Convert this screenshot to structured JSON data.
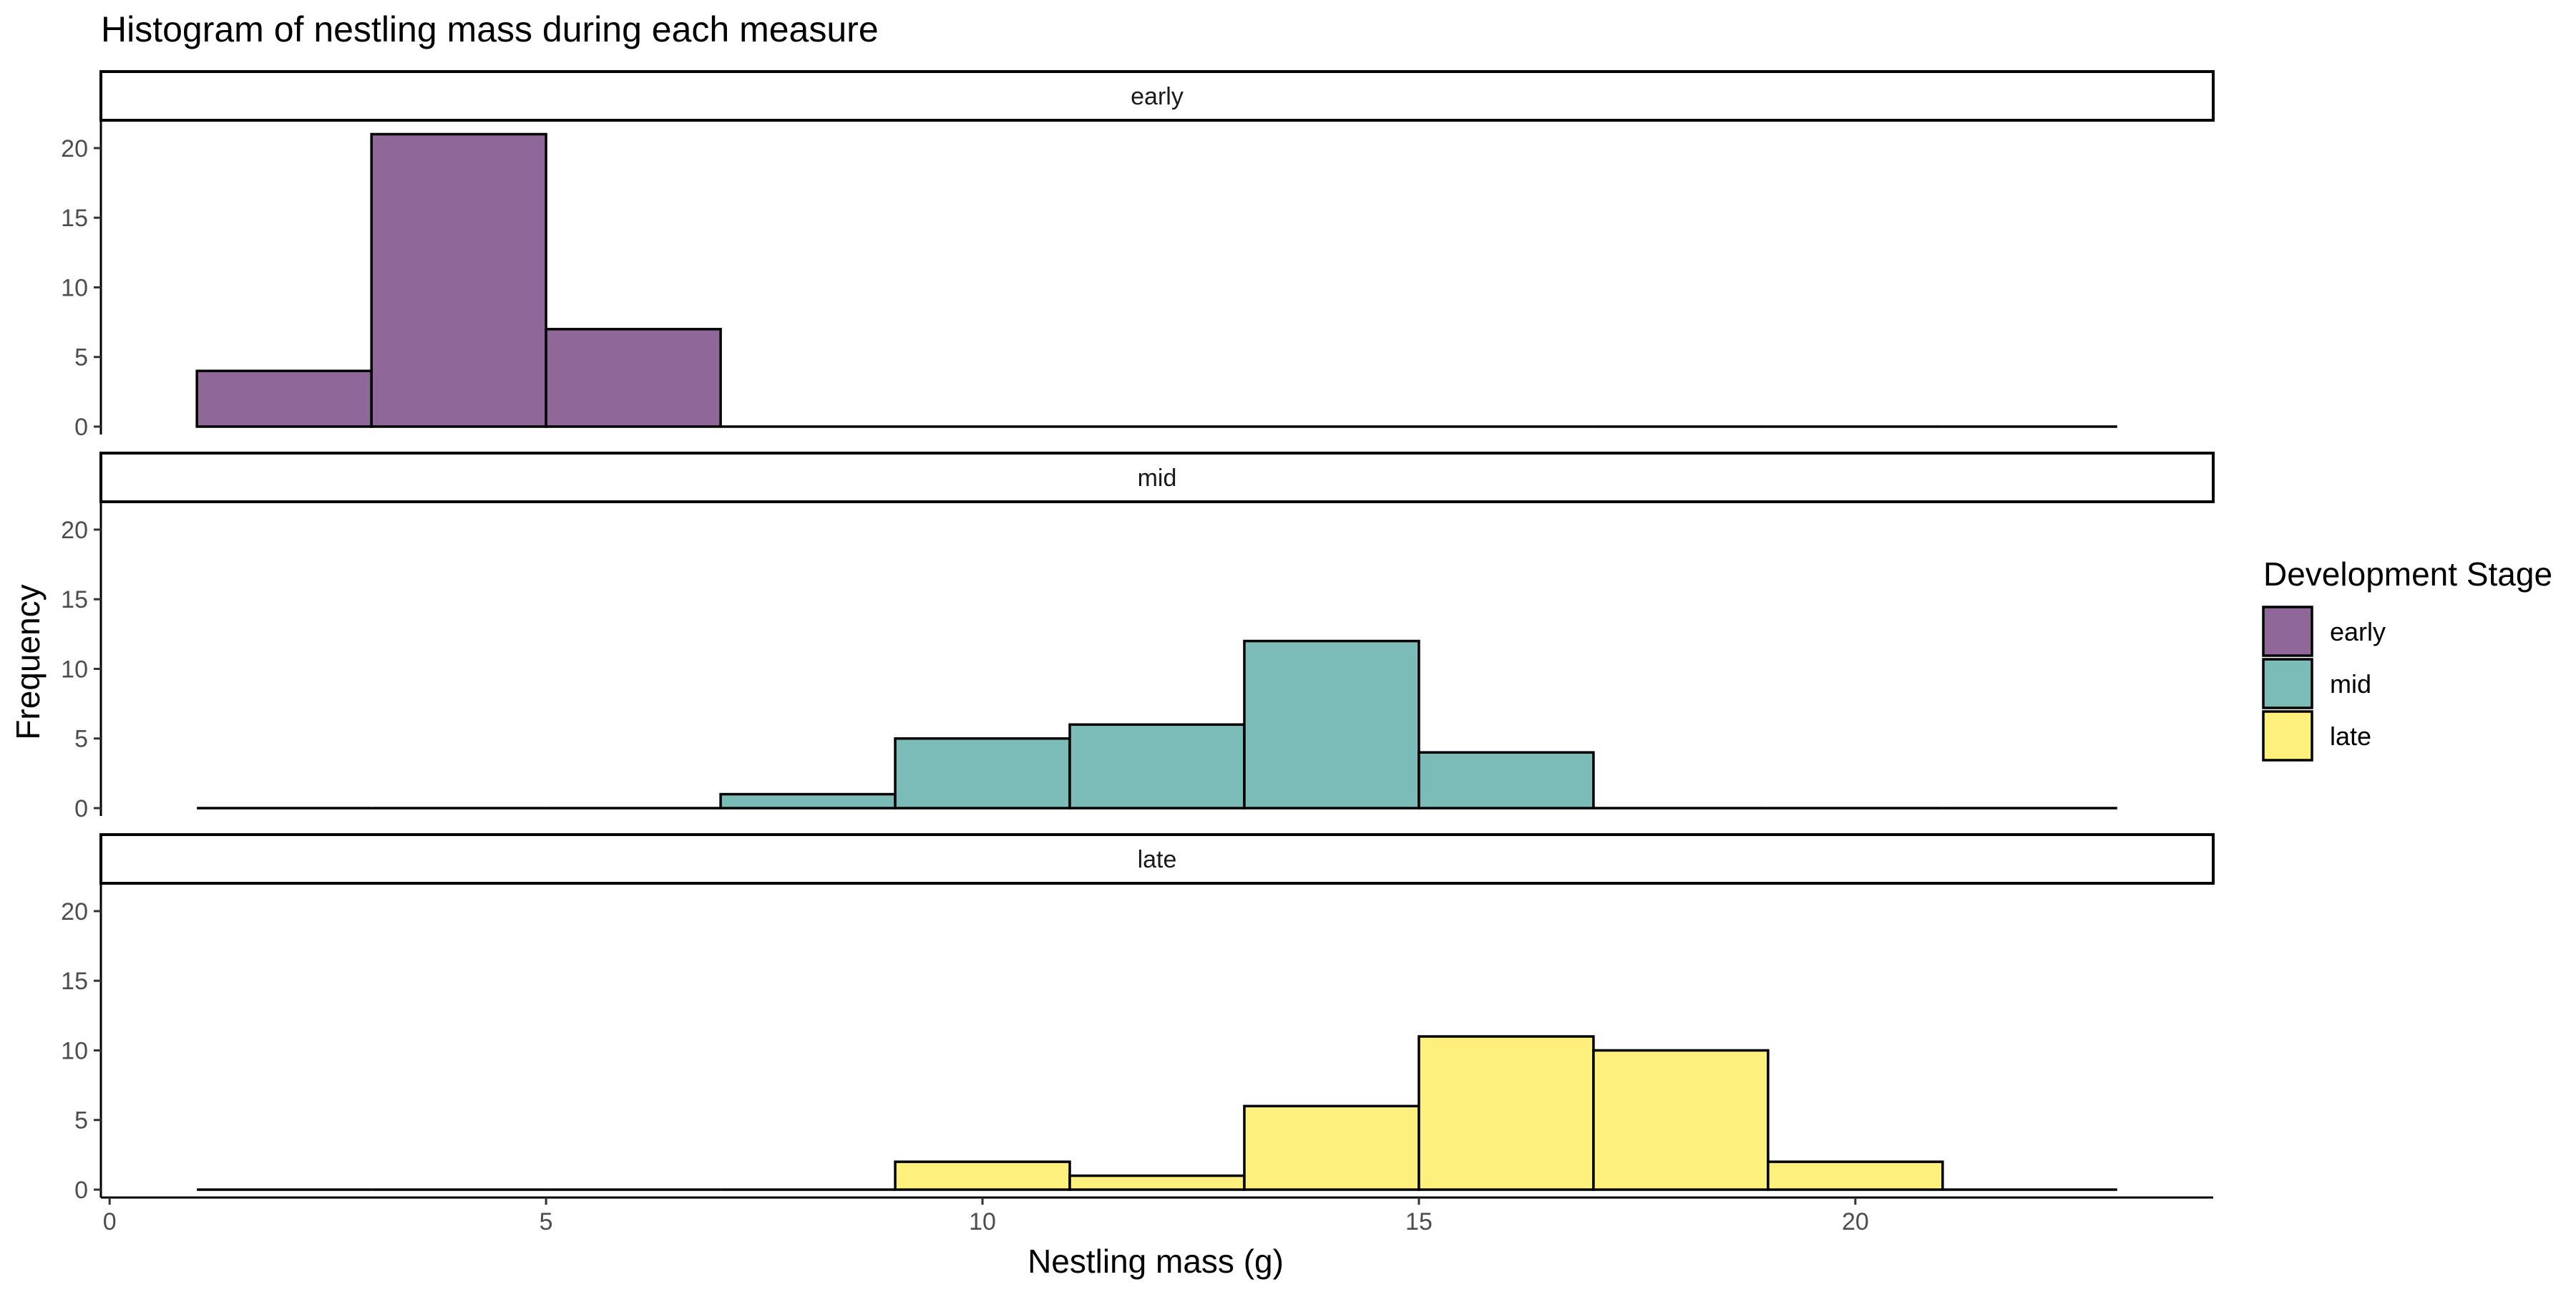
{
  "chart_data": {
    "type": "bar",
    "title": "Histogram of nestling mass during each measure",
    "xlabel": "Nestling mass (g)",
    "ylabel": "Frequency",
    "xlim": [
      -0.1,
      24.1
    ],
    "ylim": [
      0,
      22
    ],
    "x_ticks": [
      0,
      5,
      10,
      15,
      20
    ],
    "y_ticks": [
      0,
      5,
      10,
      15,
      20
    ],
    "bin_width": 2,
    "bin_edges": [
      1,
      3,
      5,
      7,
      9,
      11,
      13,
      15,
      17,
      19,
      21,
      23
    ],
    "grid": false,
    "legend": {
      "title": "Development Stage",
      "placement": "right",
      "entries": [
        "early",
        "mid",
        "late"
      ]
    },
    "facets": [
      {
        "label": "early",
        "series_name": "early",
        "color": "#8F6899",
        "values": [
          4,
          21,
          7,
          0,
          0,
          0,
          0,
          0,
          0,
          0,
          0
        ]
      },
      {
        "label": "mid",
        "series_name": "mid",
        "color": "#7BBBB8",
        "values": [
          0,
          0,
          0,
          1,
          5,
          6,
          12,
          4,
          0,
          0,
          0
        ]
      },
      {
        "label": "late",
        "series_name": "late",
        "color": "#FEF07C",
        "values": [
          0,
          0,
          0,
          0,
          2,
          1,
          6,
          11,
          10,
          2,
          0
        ]
      }
    ]
  }
}
